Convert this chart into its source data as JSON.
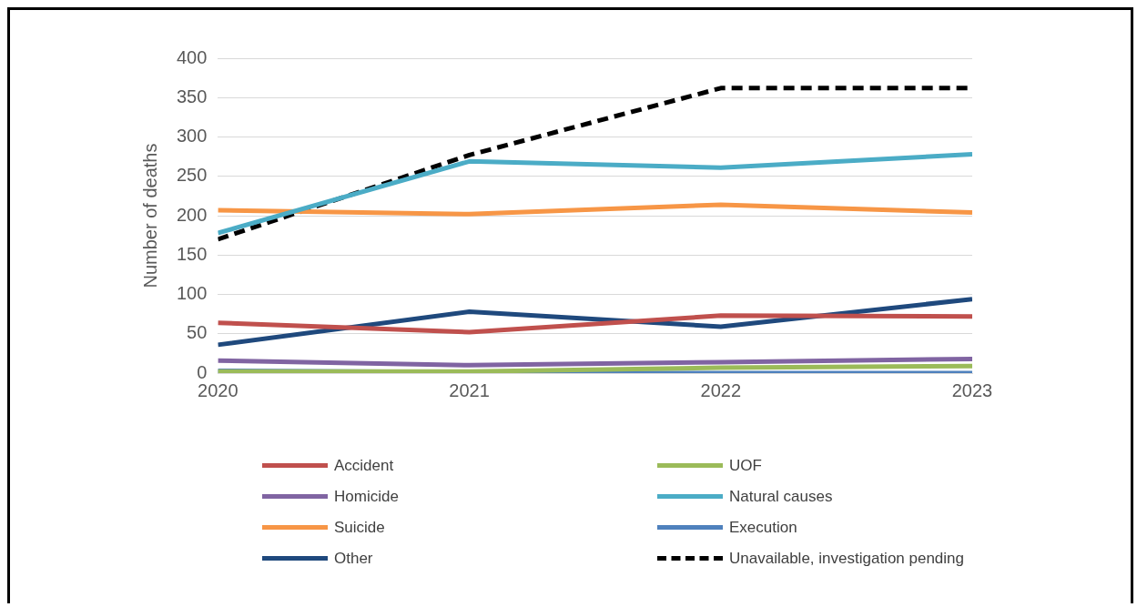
{
  "chart_data": {
    "type": "line",
    "ylabel": "Number of deaths",
    "x": [
      2020,
      2021,
      2022,
      2023
    ],
    "xlim": [
      2020,
      2023
    ],
    "xticks": [
      2020,
      2021,
      2022,
      2023
    ],
    "ylim": [
      0,
      400
    ],
    "yticks": [
      0,
      50,
      100,
      150,
      200,
      250,
      300,
      350,
      400
    ],
    "grid": "y",
    "legend": "bottom",
    "marker": "none",
    "series": [
      {
        "name": "Accident",
        "color": "#c0504d",
        "values": [
          64,
          52,
          73,
          72
        ]
      },
      {
        "name": "UOF",
        "color": "#9bbb59",
        "values": [
          2,
          2,
          7,
          9
        ]
      },
      {
        "name": "Homicide",
        "color": "#8064a2",
        "values": [
          16,
          10,
          14,
          18
        ]
      },
      {
        "name": "Natural causes",
        "color": "#4bacc6",
        "values": [
          178,
          269,
          261,
          278
        ]
      },
      {
        "name": "Suicide",
        "color": "#f79646",
        "values": [
          207,
          202,
          214,
          204
        ]
      },
      {
        "name": "Execution",
        "color": "#4f81bd",
        "values": [
          3,
          1,
          0,
          0
        ]
      },
      {
        "name": "Other",
        "color": "#1f497d",
        "values": [
          36,
          78,
          59,
          94
        ]
      },
      {
        "name": "Unavailable, investigation pending",
        "color": "#000000",
        "line_style": "dashed",
        "values": [
          170,
          277,
          362,
          362
        ]
      }
    ]
  }
}
